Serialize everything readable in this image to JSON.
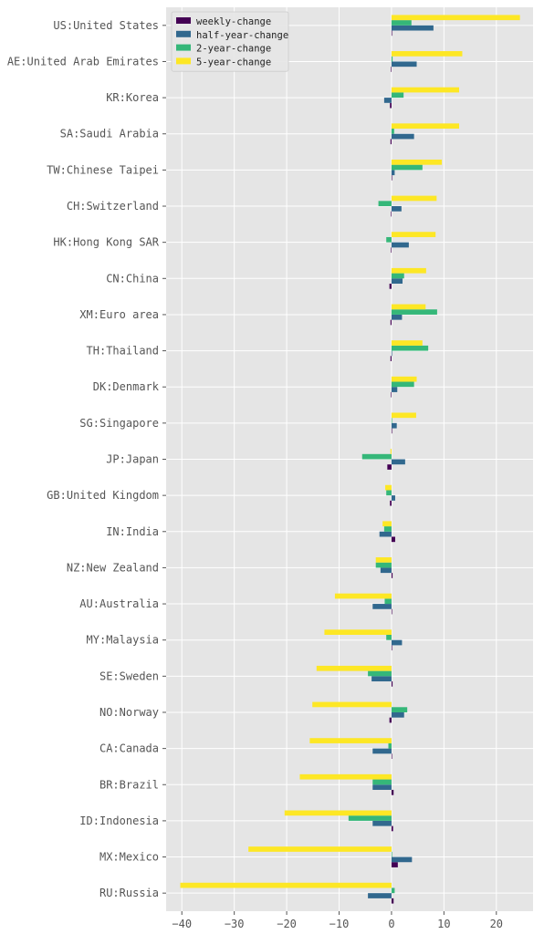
{
  "chart_data": {
    "type": "bar",
    "orientation": "horizontal",
    "grid": true,
    "legend_position": "top-left",
    "xlim": [
      -43,
      27
    ],
    "x_ticks": [
      -40,
      -30,
      -20,
      -10,
      0,
      10,
      20
    ],
    "x_tick_labels": [
      "−40",
      "−30",
      "−20",
      "−10",
      "0",
      "10",
      "20"
    ],
    "categories": [
      "US:United States",
      "AE:United Arab Emirates",
      "KR:Korea",
      "SA:Saudi Arabia",
      "TW:Chinese Taipei",
      "CH:Switzerland",
      "HK:Hong Kong SAR",
      "CN:China",
      "XM:Euro area",
      "TH:Thailand",
      "DK:Denmark",
      "SG:Singapore",
      "JP:Japan",
      "GB:United Kingdom",
      "IN:India",
      "NZ:New Zealand",
      "AU:Australia",
      "MY:Malaysia",
      "SE:Sweden",
      "NO:Norway",
      "CA:Canada",
      "BR:Brazil",
      "ID:Indonesia",
      "MX:Mexico",
      "RU:Russia"
    ],
    "series": [
      {
        "name": "weekly-change",
        "color": "#440154",
        "values": [
          0.1,
          -0.1,
          -0.3,
          -0.2,
          0.1,
          -0.1,
          -0.1,
          -0.4,
          -0.2,
          -0.2,
          -0.1,
          0.0,
          -0.8,
          -0.3,
          0.7,
          0.2,
          0.1,
          0.0,
          0.2,
          -0.4,
          0.0,
          0.4,
          0.3,
          1.2,
          0.4
        ]
      },
      {
        "name": "half-year-change",
        "color": "#31688e",
        "values": [
          8.0,
          4.8,
          -1.4,
          4.3,
          0.6,
          1.9,
          3.3,
          2.1,
          2.0,
          0.1,
          1.1,
          1.0,
          2.6,
          0.7,
          -2.3,
          -2.1,
          -3.6,
          2.0,
          -3.8,
          2.4,
          -3.6,
          -3.6,
          -3.6,
          3.9,
          -4.5
        ]
      },
      {
        "name": "2-year-change",
        "color": "#35b779",
        "values": [
          3.8,
          0.2,
          2.3,
          0.5,
          5.9,
          -2.5,
          -1.0,
          2.4,
          8.7,
          7.0,
          4.3,
          0.1,
          -5.6,
          -1.0,
          -1.4,
          -3.0,
          -1.3,
          -1.0,
          -4.5,
          3.0,
          -0.6,
          -3.6,
          -8.2,
          0.0,
          0.6
        ]
      },
      {
        "name": "5-year-change",
        "color": "#fde725",
        "values": [
          24.5,
          13.5,
          12.9,
          12.9,
          9.6,
          8.6,
          8.4,
          6.6,
          6.5,
          5.9,
          4.8,
          4.7,
          -0.2,
          -1.2,
          -1.7,
          -3.0,
          -10.8,
          -12.8,
          -14.3,
          -15.1,
          -15.6,
          -17.5,
          -20.4,
          -27.3,
          -40.3
        ]
      }
    ]
  }
}
